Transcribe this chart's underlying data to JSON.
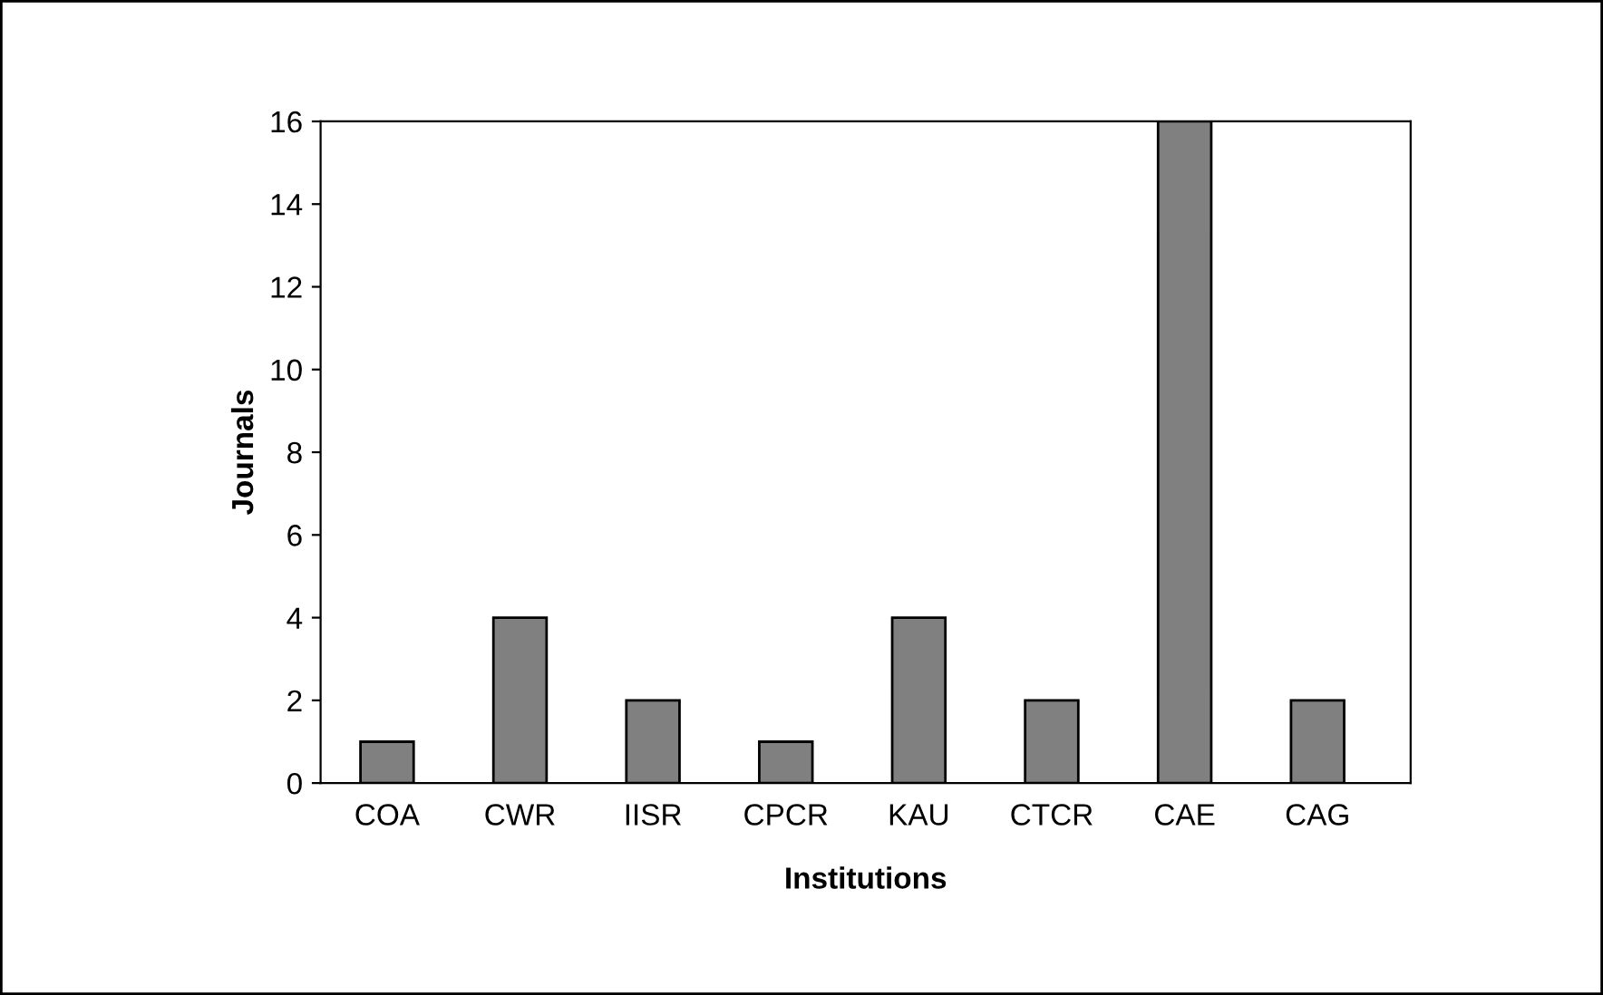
{
  "chart_data": {
    "type": "bar",
    "xlabel": "Institutions",
    "ylabel": "Journals",
    "categories": [
      "COA",
      "CWR",
      "IISR",
      "CPCR",
      "KAU",
      "CTCR",
      "CAE",
      "CAG"
    ],
    "values": [
      1,
      4,
      2,
      1,
      4,
      2,
      16,
      2
    ],
    "color": "#808080",
    "ylim": [
      0,
      16
    ],
    "yticks": [
      0,
      2,
      4,
      6,
      8,
      10,
      12,
      14,
      16
    ],
    "grid": false,
    "legend": false
  }
}
